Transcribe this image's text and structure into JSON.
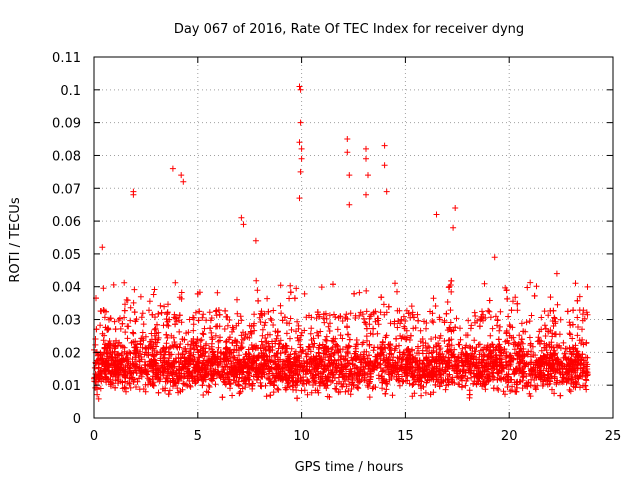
{
  "chart_data": {
    "type": "scatter",
    "title": "Day 067 of 2016, Rate Of TEC Index for receiver dyng",
    "xlabel": "GPS time / hours",
    "ylabel": "ROTI / TECUs",
    "xlim": [
      0,
      25
    ],
    "ylim": [
      0,
      0.11
    ],
    "xticks": [
      0,
      5,
      10,
      15,
      20,
      25
    ],
    "xtick_labels": [
      "0",
      "5",
      "10",
      "15",
      "20",
      "25"
    ],
    "yticks": [
      0,
      0.01,
      0.02,
      0.03,
      0.04,
      0.05,
      0.06,
      0.07,
      0.08,
      0.09,
      0.1,
      0.11
    ],
    "ytick_labels": [
      "0",
      "0.01",
      "0.02",
      "0.03",
      "0.04",
      "0.05",
      "0.06",
      "0.07",
      "0.08",
      "0.09",
      "0.1",
      "0.11"
    ],
    "grid": true,
    "marker": "+",
    "color": "#ff0000",
    "series": [
      {
        "name": "ROTI",
        "x_range": [
          0,
          23.8
        ],
        "typical_range": [
          0.005,
          0.03
        ],
        "notable_points": [
          {
            "x": 1.9,
            "y": 0.069
          },
          {
            "x": 1.9,
            "y": 0.068
          },
          {
            "x": 3.8,
            "y": 0.076
          },
          {
            "x": 4.2,
            "y": 0.074
          },
          {
            "x": 4.3,
            "y": 0.072
          },
          {
            "x": 7.1,
            "y": 0.061
          },
          {
            "x": 7.2,
            "y": 0.059
          },
          {
            "x": 9.9,
            "y": 0.101
          },
          {
            "x": 9.95,
            "y": 0.1
          },
          {
            "x": 9.95,
            "y": 0.09
          },
          {
            "x": 9.9,
            "y": 0.084
          },
          {
            "x": 10.0,
            "y": 0.082
          },
          {
            "x": 10.0,
            "y": 0.079
          },
          {
            "x": 9.95,
            "y": 0.075
          },
          {
            "x": 9.9,
            "y": 0.067
          },
          {
            "x": 12.2,
            "y": 0.085
          },
          {
            "x": 12.2,
            "y": 0.081
          },
          {
            "x": 12.3,
            "y": 0.074
          },
          {
            "x": 12.3,
            "y": 0.065
          },
          {
            "x": 13.1,
            "y": 0.082
          },
          {
            "x": 13.1,
            "y": 0.079
          },
          {
            "x": 13.2,
            "y": 0.074
          },
          {
            "x": 13.1,
            "y": 0.068
          },
          {
            "x": 14.0,
            "y": 0.083
          },
          {
            "x": 14.0,
            "y": 0.077
          },
          {
            "x": 14.1,
            "y": 0.069
          },
          {
            "x": 16.5,
            "y": 0.062
          },
          {
            "x": 17.4,
            "y": 0.064
          },
          {
            "x": 17.3,
            "y": 0.058
          },
          {
            "x": 0.4,
            "y": 0.052
          },
          {
            "x": 7.8,
            "y": 0.054
          },
          {
            "x": 19.3,
            "y": 0.049
          },
          {
            "x": 22.3,
            "y": 0.044
          },
          {
            "x": 23.4,
            "y": 0.037
          }
        ]
      }
    ]
  }
}
